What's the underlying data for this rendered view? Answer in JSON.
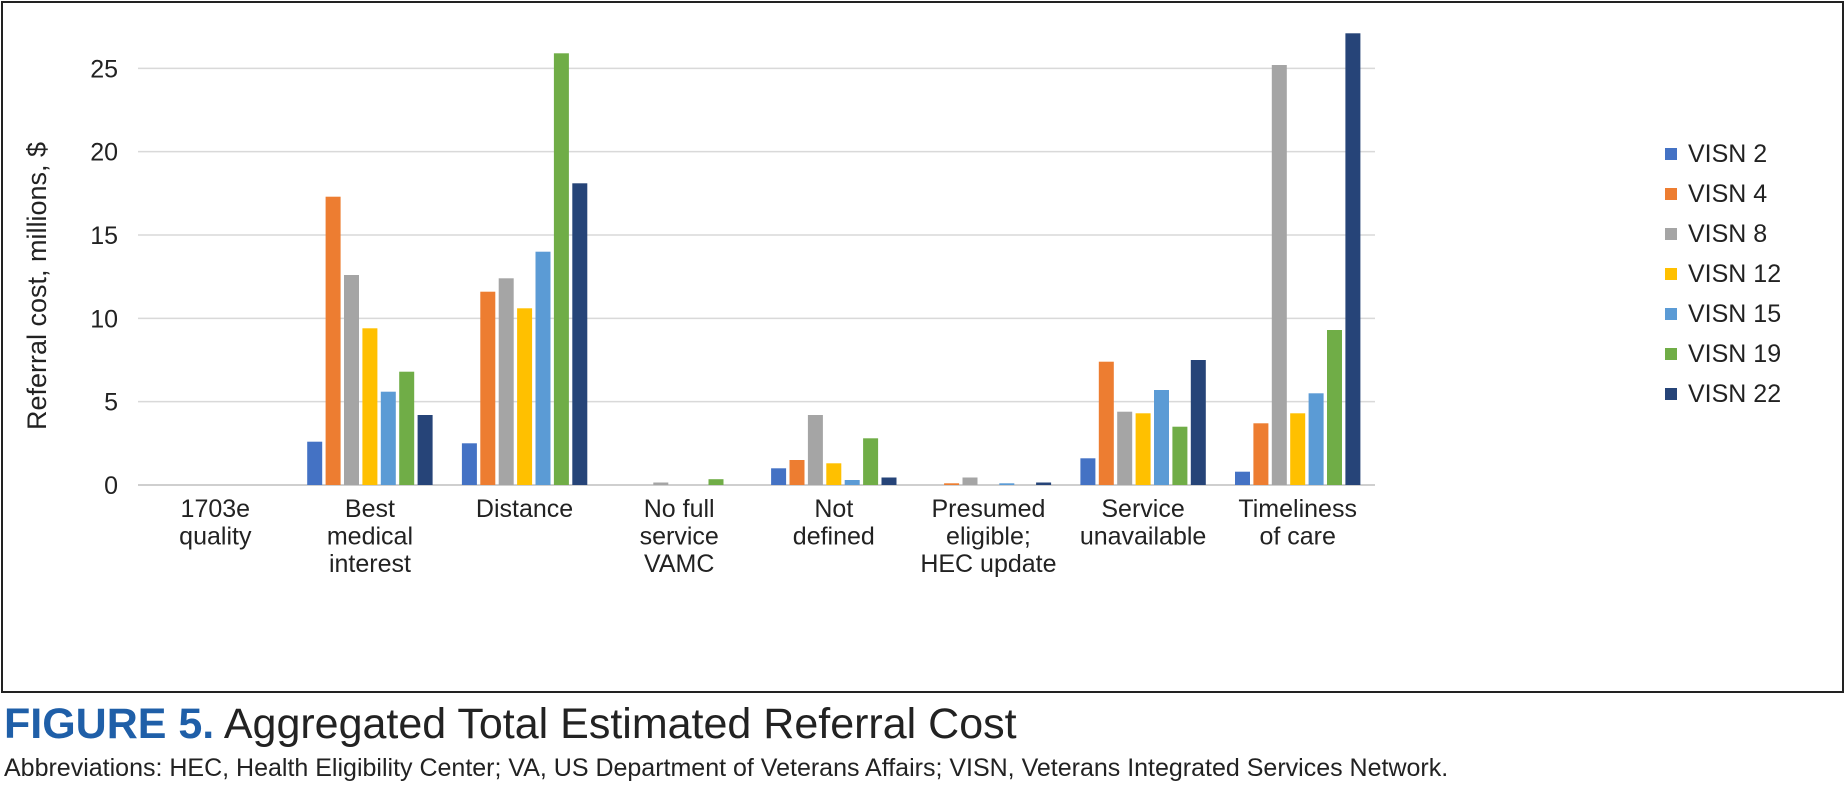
{
  "figure": {
    "label": "FIGURE 5.",
    "title": "Aggregated Total Estimated Referral Cost",
    "footnote": "Abbreviations: HEC, Health Eligibility Center; VA, US Department of Veterans Affairs; VISN, Veterans Integrated Services Network."
  },
  "chart_data": {
    "type": "bar",
    "ylabel": "Referral cost, millions, $",
    "xlabel": "",
    "ylim": [
      0,
      27
    ],
    "yticks": [
      0,
      5,
      10,
      15,
      20,
      25
    ],
    "grid": true,
    "legend_position": "right",
    "categories": [
      [
        "1703e",
        "quality"
      ],
      [
        "Best",
        "medical",
        "interest"
      ],
      [
        "Distance"
      ],
      [
        "No full",
        "service",
        "VAMC"
      ],
      [
        "Not",
        "defined"
      ],
      [
        "Presumed",
        "eligible;",
        "HEC update"
      ],
      [
        "Service",
        "unavailable"
      ],
      [
        "Timeliness",
        "of care"
      ]
    ],
    "series": [
      {
        "name": "VISN 2",
        "color": "#4472c4",
        "values": [
          0,
          2.6,
          2.5,
          0,
          1.0,
          0,
          1.6,
          0.8
        ]
      },
      {
        "name": "VISN 4",
        "color": "#ed7d31",
        "values": [
          0,
          17.3,
          11.6,
          0,
          1.5,
          0.1,
          7.4,
          3.7
        ]
      },
      {
        "name": "VISN 8",
        "color": "#a5a5a5",
        "values": [
          0,
          12.6,
          12.4,
          0.15,
          4.2,
          0.45,
          4.4,
          25.2
        ]
      },
      {
        "name": "VISN 12",
        "color": "#ffc000",
        "values": [
          0,
          9.4,
          10.6,
          0,
          1.3,
          0,
          4.3,
          4.3
        ]
      },
      {
        "name": "VISN 15",
        "color": "#5b9bd5",
        "values": [
          0,
          5.6,
          14.0,
          0,
          0.3,
          0.1,
          5.7,
          5.5
        ]
      },
      {
        "name": "VISN 19",
        "color": "#70ad47",
        "values": [
          0,
          6.8,
          25.9,
          0.35,
          2.8,
          0,
          3.5,
          9.3
        ]
      },
      {
        "name": "VISN 22",
        "color": "#264478",
        "values": [
          0,
          4.2,
          18.1,
          0,
          0.45,
          0.15,
          7.5,
          27.1
        ]
      }
    ]
  }
}
